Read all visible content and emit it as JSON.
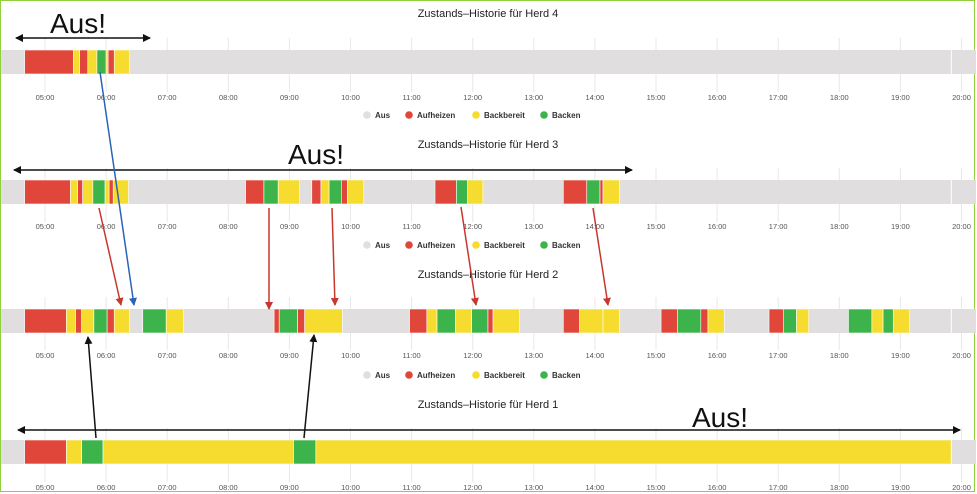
{
  "colors": {
    "Aus": "#e0dede",
    "Aufheizen": "#e1463a",
    "Backbereit": "#f5dc2e",
    "Backen": "#3cb44b"
  },
  "chart_data": [
    {
      "type": "timeline",
      "title": "Zustands–Historie für Herd 4",
      "x_ticks": [
        "05:00",
        "06:00",
        "07:00",
        "08:00",
        "09:00",
        "10:00",
        "11:00",
        "12:00",
        "13:00",
        "14:00",
        "15:00",
        "16:00",
        "17:00",
        "18:00",
        "19:00",
        "20:00"
      ],
      "legend": [
        "Aus",
        "Aufheizen",
        "Backbereit",
        "Backen"
      ],
      "segments": [
        {
          "start": "04:40",
          "end": "05:28",
          "state": "Aufheizen"
        },
        {
          "start": "05:28",
          "end": "05:34",
          "state": "Backbereit"
        },
        {
          "start": "05:34",
          "end": "05:42",
          "state": "Aufheizen"
        },
        {
          "start": "05:42",
          "end": "05:51",
          "state": "Backbereit"
        },
        {
          "start": "05:51",
          "end": "06:00",
          "state": "Backen"
        },
        {
          "start": "06:00",
          "end": "06:02",
          "state": "Backbereit"
        },
        {
          "start": "06:02",
          "end": "06:08",
          "state": "Aufheizen"
        },
        {
          "start": "06:08",
          "end": "06:23",
          "state": "Backbereit"
        }
      ]
    },
    {
      "type": "timeline",
      "title": "Zustands–Historie für Herd 3",
      "x_ticks": [
        "05:00",
        "06:00",
        "07:00",
        "08:00",
        "09:00",
        "10:00",
        "11:00",
        "12:00",
        "13:00",
        "14:00",
        "15:00",
        "16:00",
        "17:00",
        "18:00",
        "19:00",
        "20:00"
      ],
      "legend": [
        "Aus",
        "Aufheizen",
        "Backbereit",
        "Backen"
      ],
      "segments": [
        {
          "start": "04:40",
          "end": "05:25",
          "state": "Aufheizen"
        },
        {
          "start": "05:25",
          "end": "05:32",
          "state": "Backbereit"
        },
        {
          "start": "05:32",
          "end": "05:37",
          "state": "Aufheizen"
        },
        {
          "start": "05:37",
          "end": "05:47",
          "state": "Backbereit"
        },
        {
          "start": "05:47",
          "end": "05:59",
          "state": "Backen"
        },
        {
          "start": "05:59",
          "end": "06:03",
          "state": "Backbereit"
        },
        {
          "start": "06:03",
          "end": "06:07",
          "state": "Aufheizen"
        },
        {
          "start": "06:07",
          "end": "06:22",
          "state": "Backbereit"
        },
        {
          "start": "08:17",
          "end": "08:35",
          "state": "Aufheizen"
        },
        {
          "start": "08:35",
          "end": "08:49",
          "state": "Backen"
        },
        {
          "start": "08:49",
          "end": "09:10",
          "state": "Backbereit"
        },
        {
          "start": "09:22",
          "end": "09:31",
          "state": "Aufheizen"
        },
        {
          "start": "09:31",
          "end": "09:39",
          "state": "Backbereit"
        },
        {
          "start": "09:39",
          "end": "09:51",
          "state": "Backen"
        },
        {
          "start": "09:51",
          "end": "09:57",
          "state": "Aufheizen"
        },
        {
          "start": "09:57",
          "end": "10:13",
          "state": "Backbereit"
        },
        {
          "start": "11:23",
          "end": "11:44",
          "state": "Aufheizen"
        },
        {
          "start": "11:44",
          "end": "11:55",
          "state": "Backen"
        },
        {
          "start": "11:55",
          "end": "12:10",
          "state": "Backbereit"
        },
        {
          "start": "13:29",
          "end": "13:52",
          "state": "Aufheizen"
        },
        {
          "start": "13:52",
          "end": "14:05",
          "state": "Backen"
        },
        {
          "start": "14:05",
          "end": "14:08",
          "state": "Aufheizen"
        },
        {
          "start": "14:08",
          "end": "14:24",
          "state": "Backbereit"
        }
      ]
    },
    {
      "type": "timeline",
      "title": "Zustands–Historie für Herd 2",
      "x_ticks": [
        "05:00",
        "06:00",
        "07:00",
        "08:00",
        "09:00",
        "10:00",
        "11:00",
        "12:00",
        "13:00",
        "14:00",
        "15:00",
        "16:00",
        "17:00",
        "18:00",
        "19:00",
        "20:00"
      ],
      "legend": [
        "Aus",
        "Aufheizen",
        "Backbereit",
        "Backen"
      ],
      "segments": [
        {
          "start": "04:40",
          "end": "05:21",
          "state": "Aufheizen"
        },
        {
          "start": "05:21",
          "end": "05:30",
          "state": "Backbereit"
        },
        {
          "start": "05:30",
          "end": "05:36",
          "state": "Aufheizen"
        },
        {
          "start": "05:36",
          "end": "05:48",
          "state": "Backbereit"
        },
        {
          "start": "05:48",
          "end": "06:01",
          "state": "Backen"
        },
        {
          "start": "06:01",
          "end": "06:08",
          "state": "Aufheizen"
        },
        {
          "start": "06:08",
          "end": "06:23",
          "state": "Backbereit"
        },
        {
          "start": "06:36",
          "end": "06:59",
          "state": "Backen"
        },
        {
          "start": "06:59",
          "end": "07:16",
          "state": "Backbereit"
        },
        {
          "start": "08:45",
          "end": "08:50",
          "state": "Aufheizen"
        },
        {
          "start": "08:50",
          "end": "09:08",
          "state": "Backen"
        },
        {
          "start": "09:08",
          "end": "09:15",
          "state": "Aufheizen"
        },
        {
          "start": "09:15",
          "end": "09:52",
          "state": "Backbereit"
        },
        {
          "start": "10:58",
          "end": "11:15",
          "state": "Aufheizen"
        },
        {
          "start": "11:15",
          "end": "11:25",
          "state": "Backbereit"
        },
        {
          "start": "11:25",
          "end": "11:43",
          "state": "Backen"
        },
        {
          "start": "11:43",
          "end": "11:59",
          "state": "Backbereit"
        },
        {
          "start": "11:59",
          "end": "12:15",
          "state": "Backen"
        },
        {
          "start": "12:15",
          "end": "12:20",
          "state": "Aufheizen"
        },
        {
          "start": "12:20",
          "end": "12:46",
          "state": "Backbereit"
        },
        {
          "start": "13:29",
          "end": "13:45",
          "state": "Aufheizen"
        },
        {
          "start": "13:45",
          "end": "14:08",
          "state": "Backbereit"
        },
        {
          "start": "14:08",
          "end": "14:24",
          "state": "Backbereit"
        },
        {
          "start": "15:05",
          "end": "15:21",
          "state": "Aufheizen"
        },
        {
          "start": "15:21",
          "end": "15:44",
          "state": "Backen"
        },
        {
          "start": "15:44",
          "end": "15:51",
          "state": "Aufheizen"
        },
        {
          "start": "15:51",
          "end": "16:07",
          "state": "Backbereit"
        },
        {
          "start": "16:51",
          "end": "17:05",
          "state": "Aufheizen"
        },
        {
          "start": "17:05",
          "end": "17:18",
          "state": "Backen"
        },
        {
          "start": "17:18",
          "end": "17:30",
          "state": "Backbereit"
        },
        {
          "start": "18:09",
          "end": "18:32",
          "state": "Backen"
        },
        {
          "start": "18:32",
          "end": "18:43",
          "state": "Backbereit"
        },
        {
          "start": "18:43",
          "end": "18:53",
          "state": "Backen"
        },
        {
          "start": "18:53",
          "end": "19:09",
          "state": "Backbereit"
        }
      ]
    },
    {
      "type": "timeline",
      "title": "Zustands–Historie für Herd 1",
      "x_ticks": [
        "05:00",
        "06:00",
        "07:00",
        "08:00",
        "09:00",
        "10:00",
        "11:00",
        "12:00",
        "13:00",
        "14:00",
        "15:00",
        "16:00",
        "17:00",
        "18:00",
        "19:00",
        "20:00"
      ],
      "legend": [],
      "segments": [
        {
          "start": "04:40",
          "end": "05:21",
          "state": "Aufheizen"
        },
        {
          "start": "05:21",
          "end": "05:36",
          "state": "Backbereit"
        },
        {
          "start": "05:36",
          "end": "05:57",
          "state": "Backen"
        },
        {
          "start": "05:57",
          "end": "09:04",
          "state": "Backbereit"
        },
        {
          "start": "09:04",
          "end": "09:26",
          "state": "Backen"
        },
        {
          "start": "09:26",
          "end": "19:50",
          "state": "Backbereit"
        }
      ]
    }
  ],
  "annotations": [
    {
      "text": "Aus!"
    },
    {
      "text": "Aus!"
    },
    {
      "text": "Aus!"
    }
  ]
}
